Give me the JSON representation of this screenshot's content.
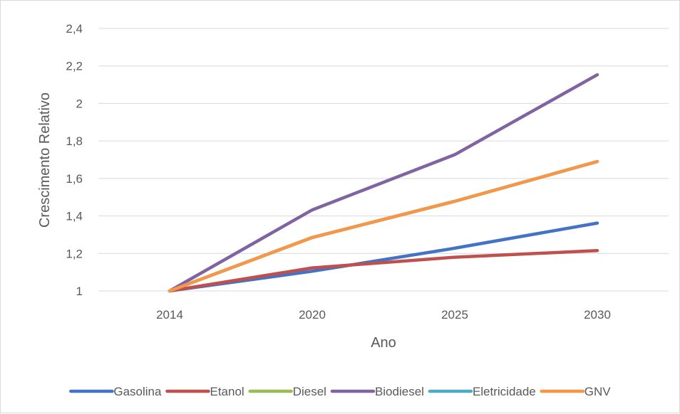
{
  "chart_data": {
    "type": "line",
    "title": "",
    "xlabel": "Ano",
    "ylabel": "Crescimento Relativo",
    "categories": [
      "2014",
      "2020",
      "2025",
      "2030"
    ],
    "ylim": [
      1,
      2.4
    ],
    "yticks": [
      1,
      1.2,
      1.4,
      1.6,
      1.8,
      2,
      2.2,
      2.4
    ],
    "ytick_labels": [
      "1",
      "1,2",
      "1,4",
      "1,6",
      "1,8",
      "2",
      "2,2",
      "2,4"
    ],
    "grid": "horizontal",
    "legend_position": "bottom",
    "series": [
      {
        "name": "Gasolina",
        "color": "#4472c4",
        "values": [
          1,
          1.105,
          1.228,
          1.362
        ]
      },
      {
        "name": "Etanol",
        "color": "#c0504d",
        "values": [
          1,
          1.123,
          1.18,
          1.215
        ]
      },
      {
        "name": "Diesel",
        "color": "#9bbb59",
        "values": [
          1,
          1.285,
          1.478,
          1.69
        ]
      },
      {
        "name": "Biodiesel",
        "color": "#8064a2",
        "values": [
          1,
          1.432,
          1.727,
          2.153
        ]
      },
      {
        "name": "Eletricidade",
        "color": "#4bacc6",
        "values": [
          1,
          1.285,
          1.478,
          1.69
        ]
      },
      {
        "name": "GNV",
        "color": "#f79646",
        "values": [
          1,
          1.285,
          1.478,
          1.69
        ]
      }
    ]
  }
}
